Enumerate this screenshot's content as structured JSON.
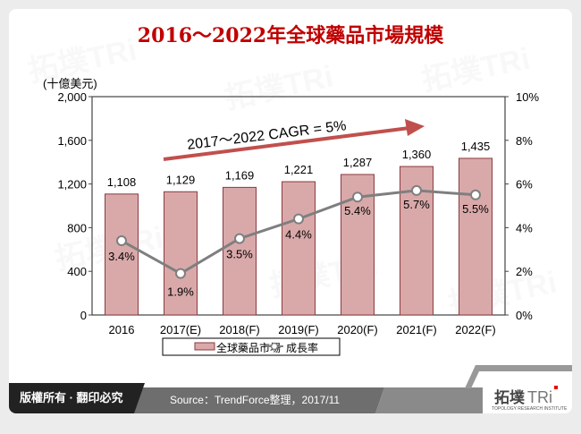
{
  "title": "2016～2022年全球藥品市場規模",
  "footer": {
    "copyright": "版權所有 · 翻印必究",
    "source": "Source：TrendForce整理，2017/11",
    "logo_cn": "拓墣",
    "logo_en": "TRi",
    "logo_sub": "TOPOLOGY RESEARCH INSTITUTE"
  },
  "colors": {
    "title": "#c00000",
    "bar_fill": "#d9a9aa",
    "bar_stroke": "#8b3a3e",
    "line": "#7f7f7f",
    "arrow": "#c0504d"
  },
  "chart_data": {
    "type": "bar",
    "title": "2016～2022年全球藥品市場規模",
    "categories": [
      "2016",
      "2017(E)",
      "2018(F)",
      "2019(F)",
      "2020(F)",
      "2021(F)",
      "2022(F)"
    ],
    "series": [
      {
        "name": "全球藥品市場",
        "type": "bar",
        "axis": "left",
        "values": [
          1108,
          1129,
          1169,
          1221,
          1287,
          1360,
          1435
        ]
      },
      {
        "name": "成長率",
        "type": "line",
        "axis": "right",
        "values": [
          3.4,
          1.9,
          3.5,
          4.4,
          5.4,
          5.7,
          5.5
        ],
        "labels": [
          "3.4%",
          "1.9%",
          "3.5%",
          "4.4%",
          "5.4%",
          "5.7%",
          "5.5%"
        ]
      }
    ],
    "ylabel": "(十億美元)",
    "ylim": [
      0,
      2000
    ],
    "yticks": [
      "0",
      "400",
      "800",
      "1,200",
      "1,600",
      "2,000"
    ],
    "y2lim": [
      0,
      10
    ],
    "y2ticks": [
      "0%",
      "2%",
      "4%",
      "6%",
      "8%",
      "10%"
    ],
    "bar_labels": [
      "1,108",
      "1,129",
      "1,169",
      "1,221",
      "1,287",
      "1,360",
      "1,435"
    ],
    "annotation": "2017～2022 CAGR = 5%",
    "legend": [
      "全球藥品市場",
      "成長率"
    ],
    "legend_position": "bottom",
    "grid": false
  }
}
